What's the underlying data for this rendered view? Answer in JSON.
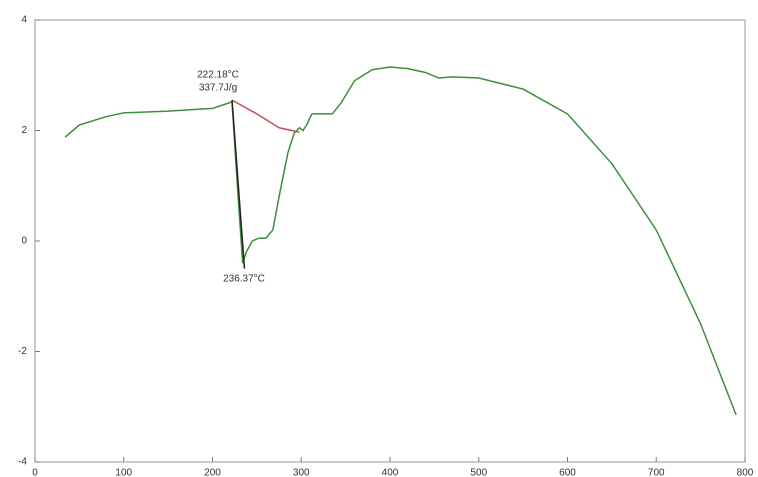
{
  "chart_data": {
    "type": "line",
    "annotations": [
      "222.18°C",
      "337.7J/g",
      "236.37°C"
    ],
    "series": [
      {
        "color": "#3c8f3c",
        "x": [
          34,
          50,
          80,
          100,
          150,
          200,
          215,
          222,
          228,
          234,
          238,
          245,
          252,
          260,
          268,
          275,
          285,
          292,
          298,
          302,
          306,
          312,
          320,
          335,
          345,
          360,
          380,
          400,
          420,
          440,
          455,
          470,
          500,
          550,
          600,
          650,
          700,
          750,
          790
        ],
        "values": [
          1.88,
          2.1,
          2.25,
          2.32,
          2.35,
          2.4,
          2.48,
          2.52,
          1.0,
          -0.4,
          -0.2,
          0.0,
          0.05,
          0.05,
          0.2,
          0.8,
          1.6,
          1.95,
          2.05,
          2.0,
          2.1,
          2.3,
          2.3,
          2.3,
          2.5,
          2.9,
          3.1,
          3.15,
          3.12,
          3.05,
          2.95,
          2.97,
          2.95,
          2.75,
          2.3,
          1.4,
          0.2,
          -1.5,
          -3.15
        ]
      },
      {
        "color": "#c0505a",
        "x": [
          222,
          250,
          275,
          298
        ],
        "values": [
          2.55,
          2.3,
          2.05,
          1.97
        ]
      },
      {
        "color": "#222222",
        "x": [
          222,
          236
        ],
        "values": [
          2.55,
          -0.5
        ]
      }
    ],
    "xlim": [
      0,
      800
    ],
    "xticks": [
      0,
      100,
      200,
      300,
      400,
      500,
      600,
      700,
      800
    ],
    "ylim": [
      -4,
      4
    ],
    "yticks": [
      -4,
      -2,
      0,
      2,
      4
    ]
  }
}
